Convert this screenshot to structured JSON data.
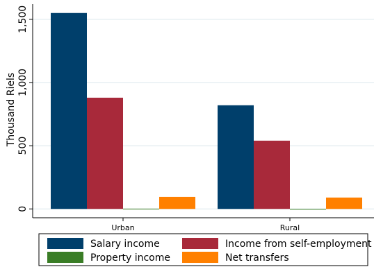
{
  "chart_data": {
    "type": "bar",
    "categories": [
      "Urban",
      "Rural"
    ],
    "series": [
      {
        "name": "Salary income",
        "color": "#003f6b",
        "values": [
          1550,
          820
        ]
      },
      {
        "name": "Income from self-employment",
        "color": "#a8293a",
        "values": [
          880,
          540
        ]
      },
      {
        "name": "Property income",
        "color": "#3a7d26",
        "values": [
          2,
          -3
        ]
      },
      {
        "name": "Net transfers",
        "color": "#ff8000",
        "values": [
          95,
          90
        ]
      }
    ],
    "xlabel": "",
    "ylabel": "Thousand Riels",
    "ylim": [
      -70,
      1620
    ],
    "yticks": [
      0,
      500,
      1000,
      1500
    ],
    "ytick_labels": [
      "0",
      "500",
      "1,000",
      "1,500"
    ],
    "grid": true,
    "legend_position": "bottom"
  }
}
